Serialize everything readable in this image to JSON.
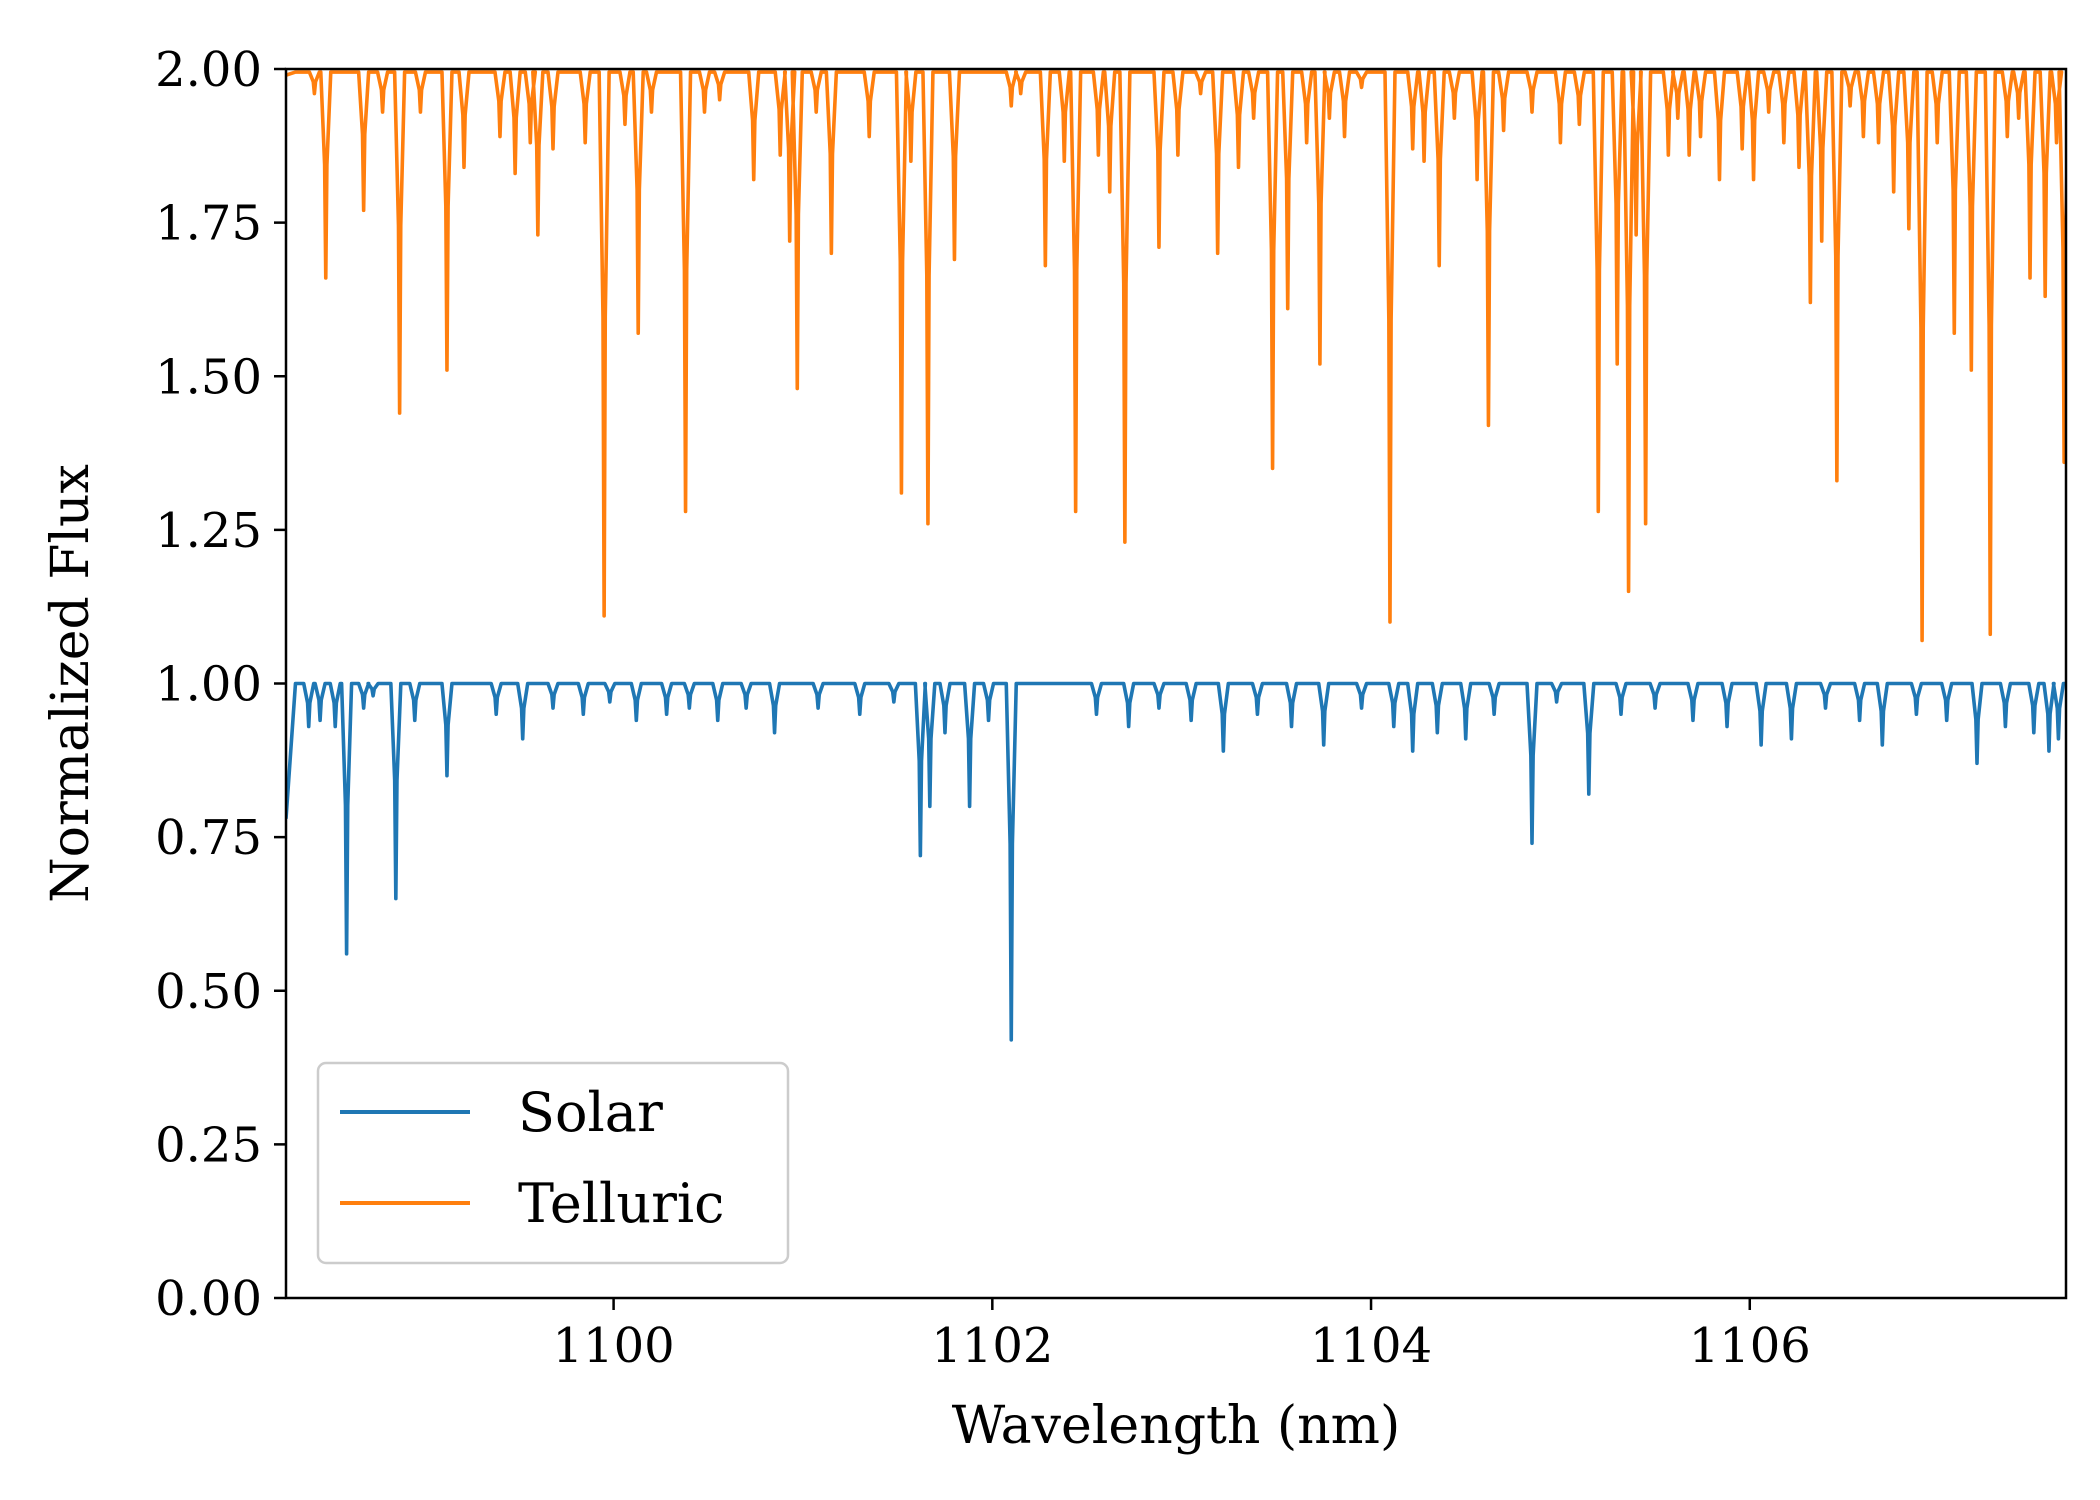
{
  "chart_data": {
    "type": "line",
    "title": "",
    "xlabel": "Wavelength (nm)",
    "ylabel": "Normalized Flux",
    "xlim": [
      1098.27,
      1107.67
    ],
    "ylim": [
      0.0,
      2.0
    ],
    "xticks": [
      1100,
      1102,
      1104,
      1106
    ],
    "xtick_labels": [
      "1100",
      "1102",
      "1104",
      "1106"
    ],
    "yticks": [
      0.0,
      0.25,
      0.5,
      0.75,
      1.0,
      1.25,
      1.5,
      1.75,
      2.0
    ],
    "ytick_labels": [
      "0.00",
      "0.25",
      "0.50",
      "0.75",
      "1.00",
      "1.25",
      "1.50",
      "1.75",
      "2.00"
    ],
    "grid": false,
    "legend_position": "lower-left",
    "series": [
      {
        "name": "Solar",
        "color": "#1f77b4",
        "baseline": 1.0,
        "start_value": 0.78,
        "lines": [
          [
            1098.39,
            0.93
          ],
          [
            1098.45,
            0.94
          ],
          [
            1098.53,
            0.93
          ],
          [
            1098.59,
            0.56
          ],
          [
            1098.68,
            0.96
          ],
          [
            1098.73,
            0.98
          ],
          [
            1098.85,
            0.65
          ],
          [
            1098.95,
            0.94
          ],
          [
            1099.12,
            0.85
          ],
          [
            1099.38,
            0.95
          ],
          [
            1099.52,
            0.91
          ],
          [
            1099.68,
            0.96
          ],
          [
            1099.84,
            0.95
          ],
          [
            1099.98,
            0.97
          ],
          [
            1100.12,
            0.94
          ],
          [
            1100.28,
            0.95
          ],
          [
            1100.4,
            0.96
          ],
          [
            1100.55,
            0.94
          ],
          [
            1100.7,
            0.96
          ],
          [
            1100.85,
            0.92
          ],
          [
            1101.08,
            0.96
          ],
          [
            1101.3,
            0.95
          ],
          [
            1101.48,
            0.97
          ],
          [
            1101.62,
            0.72
          ],
          [
            1101.67,
            0.8
          ],
          [
            1101.75,
            0.92
          ],
          [
            1101.88,
            0.8
          ],
          [
            1101.98,
            0.94
          ],
          [
            1102.1,
            0.42
          ],
          [
            1102.55,
            0.95
          ],
          [
            1102.72,
            0.93
          ],
          [
            1102.88,
            0.96
          ],
          [
            1103.05,
            0.94
          ],
          [
            1103.22,
            0.89
          ],
          [
            1103.4,
            0.95
          ],
          [
            1103.58,
            0.93
          ],
          [
            1103.75,
            0.9
          ],
          [
            1103.95,
            0.96
          ],
          [
            1104.12,
            0.93
          ],
          [
            1104.22,
            0.89
          ],
          [
            1104.35,
            0.92
          ],
          [
            1104.5,
            0.91
          ],
          [
            1104.65,
            0.95
          ],
          [
            1104.85,
            0.74
          ],
          [
            1104.98,
            0.97
          ],
          [
            1105.15,
            0.82
          ],
          [
            1105.32,
            0.95
          ],
          [
            1105.5,
            0.96
          ],
          [
            1105.7,
            0.94
          ],
          [
            1105.88,
            0.93
          ],
          [
            1106.06,
            0.9
          ],
          [
            1106.22,
            0.91
          ],
          [
            1106.4,
            0.96
          ],
          [
            1106.58,
            0.94
          ],
          [
            1106.7,
            0.9
          ],
          [
            1106.88,
            0.95
          ],
          [
            1107.04,
            0.94
          ],
          [
            1107.2,
            0.87
          ],
          [
            1107.35,
            0.93
          ],
          [
            1107.5,
            0.92
          ],
          [
            1107.58,
            0.89
          ],
          [
            1107.63,
            0.91
          ]
        ]
      },
      {
        "name": "Telluric",
        "color": "#ff7f0e",
        "baseline": 1.995,
        "start_value": 1.99,
        "lines": [
          [
            1098.42,
            1.96
          ],
          [
            1098.48,
            1.66
          ],
          [
            1098.68,
            1.77
          ],
          [
            1098.78,
            1.93
          ],
          [
            1098.87,
            1.44
          ],
          [
            1098.98,
            1.93
          ],
          [
            1099.12,
            1.51
          ],
          [
            1099.21,
            1.84
          ],
          [
            1099.4,
            1.89
          ],
          [
            1099.48,
            1.83
          ],
          [
            1099.56,
            1.88
          ],
          [
            1099.6,
            1.73
          ],
          [
            1099.68,
            1.87
          ],
          [
            1099.85,
            1.88
          ],
          [
            1099.95,
            1.11
          ],
          [
            1100.06,
            1.91
          ],
          [
            1100.13,
            1.57
          ],
          [
            1100.2,
            1.93
          ],
          [
            1100.38,
            1.28
          ],
          [
            1100.48,
            1.93
          ],
          [
            1100.56,
            1.95
          ],
          [
            1100.74,
            1.82
          ],
          [
            1100.88,
            1.86
          ],
          [
            1100.93,
            1.72
          ],
          [
            1100.97,
            1.48
          ],
          [
            1101.07,
            1.93
          ],
          [
            1101.15,
            1.7
          ],
          [
            1101.35,
            1.89
          ],
          [
            1101.52,
            1.31
          ],
          [
            1101.57,
            1.85
          ],
          [
            1101.66,
            1.26
          ],
          [
            1101.8,
            1.69
          ],
          [
            1102.1,
            1.94
          ],
          [
            1102.15,
            1.96
          ],
          [
            1102.28,
            1.68
          ],
          [
            1102.38,
            1.85
          ],
          [
            1102.44,
            1.28
          ],
          [
            1102.56,
            1.86
          ],
          [
            1102.62,
            1.8
          ],
          [
            1102.7,
            1.23
          ],
          [
            1102.88,
            1.71
          ],
          [
            1102.98,
            1.86
          ],
          [
            1103.1,
            1.96
          ],
          [
            1103.19,
            1.7
          ],
          [
            1103.3,
            1.84
          ],
          [
            1103.38,
            1.92
          ],
          [
            1103.48,
            1.35
          ],
          [
            1103.56,
            1.61
          ],
          [
            1103.66,
            1.88
          ],
          [
            1103.73,
            1.52
          ],
          [
            1103.78,
            1.92
          ],
          [
            1103.86,
            1.89
          ],
          [
            1103.95,
            1.97
          ],
          [
            1104.1,
            1.1
          ],
          [
            1104.22,
            1.87
          ],
          [
            1104.28,
            1.85
          ],
          [
            1104.36,
            1.68
          ],
          [
            1104.44,
            1.92
          ],
          [
            1104.56,
            1.82
          ],
          [
            1104.62,
            1.42
          ],
          [
            1104.7,
            1.9
          ],
          [
            1104.85,
            1.93
          ],
          [
            1105.0,
            1.88
          ],
          [
            1105.1,
            1.91
          ],
          [
            1105.2,
            1.28
          ],
          [
            1105.3,
            1.52
          ],
          [
            1105.36,
            1.15
          ],
          [
            1105.4,
            1.73
          ],
          [
            1105.45,
            1.26
          ],
          [
            1105.57,
            1.86
          ],
          [
            1105.62,
            1.92
          ],
          [
            1105.68,
            1.86
          ],
          [
            1105.74,
            1.89
          ],
          [
            1105.84,
            1.82
          ],
          [
            1105.96,
            1.87
          ],
          [
            1106.02,
            1.82
          ],
          [
            1106.1,
            1.93
          ],
          [
            1106.18,
            1.88
          ],
          [
            1106.26,
            1.84
          ],
          [
            1106.32,
            1.62
          ],
          [
            1106.38,
            1.72
          ],
          [
            1106.46,
            1.33
          ],
          [
            1106.53,
            1.94
          ],
          [
            1106.6,
            1.89
          ],
          [
            1106.68,
            1.88
          ],
          [
            1106.76,
            1.8
          ],
          [
            1106.84,
            1.74
          ],
          [
            1106.91,
            1.07
          ],
          [
            1106.99,
            1.88
          ],
          [
            1107.08,
            1.57
          ],
          [
            1107.17,
            1.51
          ],
          [
            1107.27,
            1.08
          ],
          [
            1107.36,
            1.89
          ],
          [
            1107.42,
            1.92
          ],
          [
            1107.48,
            1.66
          ],
          [
            1107.56,
            1.63
          ],
          [
            1107.62,
            1.88
          ],
          [
            1107.66,
            1.36
          ]
        ]
      }
    ]
  }
}
